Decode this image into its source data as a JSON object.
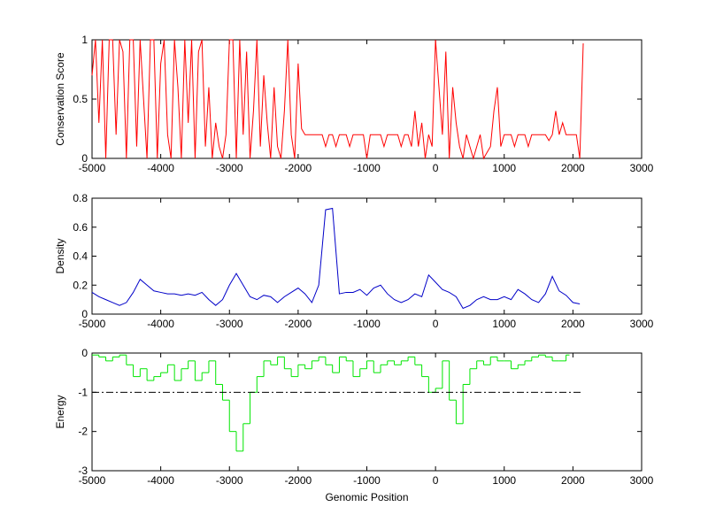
{
  "chart_data": [
    {
      "type": "line",
      "ylabel": "Conservation Score",
      "xlim": [
        -5000,
        3000
      ],
      "xticks": [
        -5000,
        -4000,
        -3000,
        -2000,
        -1000,
        0,
        1000,
        2000,
        3000
      ],
      "ylim": [
        0,
        1
      ],
      "yticks": [
        0,
        0.5,
        1
      ],
      "series": [
        {
          "color": "#ff0000",
          "x": [
            -5000,
            -4950,
            -4900,
            -4850,
            -4800,
            -4750,
            -4700,
            -4650,
            -4600,
            -4550,
            -4500,
            -4450,
            -4400,
            -4350,
            -4300,
            -4250,
            -4200,
            -4150,
            -4100,
            -4050,
            -4000,
            -3950,
            -3900,
            -3850,
            -3800,
            -3750,
            -3700,
            -3650,
            -3600,
            -3550,
            -3500,
            -3450,
            -3400,
            -3350,
            -3300,
            -3250,
            -3200,
            -3150,
            -3100,
            -3050,
            -3000,
            -2950,
            -2900,
            -2850,
            -2800,
            -2750,
            -2700,
            -2650,
            -2600,
            -2550,
            -2500,
            -2450,
            -2400,
            -2350,
            -2300,
            -2250,
            -2200,
            -2150,
            -2100,
            -2050,
            -2000,
            -1950,
            -1900,
            -1850,
            -1800,
            -1750,
            -1700,
            -1650,
            -1600,
            -1550,
            -1500,
            -1450,
            -1400,
            -1350,
            -1300,
            -1250,
            -1200,
            -1150,
            -1100,
            -1050,
            -1000,
            -950,
            -900,
            -850,
            -800,
            -750,
            -700,
            -650,
            -600,
            -550,
            -500,
            -450,
            -400,
            -350,
            -300,
            -250,
            -200,
            -150,
            -100,
            -50,
            0,
            50,
            100,
            150,
            200,
            250,
            300,
            350,
            400,
            450,
            500,
            550,
            600,
            650,
            700,
            750,
            800,
            850,
            900,
            950,
            1000,
            1050,
            1100,
            1150,
            1200,
            1250,
            1300,
            1350,
            1400,
            1450,
            1500,
            1550,
            1600,
            1650,
            1700,
            1750,
            1800,
            1850,
            1900,
            1950,
            2000,
            2050,
            2100,
            2150
          ],
          "values": [
            0.7,
            1,
            0.3,
            1,
            0,
            1,
            1,
            0.2,
            1,
            0.9,
            0,
            1,
            1,
            0.1,
            1,
            0.5,
            0,
            1,
            1,
            0,
            0.8,
            1,
            0.2,
            0,
            1,
            0.6,
            0,
            1,
            0.3,
            1,
            0,
            0.9,
            1,
            0.1,
            0.6,
            0,
            0.3,
            0.1,
            0,
            0.2,
            1,
            1,
            0,
            1,
            0.2,
            0.9,
            0,
            0.4,
            1,
            0.1,
            0.7,
            0.3,
            0,
            0.6,
            0.1,
            0,
            0.4,
            1,
            0.2,
            0,
            0.8,
            0.25,
            0.2,
            0.2,
            0.2,
            0.2,
            0.2,
            0.2,
            0.1,
            0.2,
            0.2,
            0.1,
            0.2,
            0.2,
            0.2,
            0.1,
            0.2,
            0.2,
            0.2,
            0.2,
            0,
            0.2,
            0.2,
            0.2,
            0.2,
            0.1,
            0.2,
            0.2,
            0.2,
            0.2,
            0.1,
            0.2,
            0.2,
            0.1,
            0.4,
            0.1,
            0.3,
            0,
            0.2,
            0.1,
            1,
            0.6,
            0.2,
            0.9,
            0,
            0.6,
            0.3,
            0.1,
            0,
            0.2,
            0.1,
            0,
            0.1,
            0.2,
            0,
            0.05,
            0.1,
            0.4,
            0.6,
            0.1,
            0.2,
            0.2,
            0.2,
            0.1,
            0.2,
            0.2,
            0.2,
            0.1,
            0.2,
            0.2,
            0.2,
            0.2,
            0.2,
            0.15,
            0.2,
            0.4,
            0.2,
            0.3,
            0.2,
            0.2,
            0.2,
            0.2,
            0,
            0.97
          ]
        }
      ]
    },
    {
      "type": "line",
      "ylabel": "Density",
      "xlim": [
        -5000,
        3000
      ],
      "xticks": [
        -5000,
        -4000,
        -3000,
        -2000,
        -1000,
        0,
        1000,
        2000,
        3000
      ],
      "ylim": [
        0,
        0.8
      ],
      "yticks": [
        0,
        0.2,
        0.4,
        0.6,
        0.8
      ],
      "series": [
        {
          "color": "#0000c8",
          "x": [
            -5000,
            -4900,
            -4800,
            -4700,
            -4600,
            -4500,
            -4400,
            -4300,
            -4200,
            -4100,
            -4000,
            -3900,
            -3800,
            -3700,
            -3600,
            -3500,
            -3400,
            -3300,
            -3200,
            -3100,
            -3000,
            -2900,
            -2800,
            -2700,
            -2600,
            -2500,
            -2400,
            -2300,
            -2200,
            -2100,
            -2000,
            -1900,
            -1800,
            -1700,
            -1600,
            -1500,
            -1400,
            -1300,
            -1200,
            -1100,
            -1000,
            -900,
            -800,
            -700,
            -600,
            -500,
            -400,
            -300,
            -200,
            -100,
            0,
            100,
            200,
            300,
            400,
            500,
            600,
            700,
            800,
            900,
            1000,
            1100,
            1200,
            1300,
            1400,
            1500,
            1600,
            1700,
            1800,
            1900,
            2000,
            2100
          ],
          "values": [
            0.15,
            0.12,
            0.1,
            0.08,
            0.06,
            0.08,
            0.15,
            0.24,
            0.2,
            0.16,
            0.15,
            0.14,
            0.14,
            0.13,
            0.14,
            0.13,
            0.15,
            0.1,
            0.06,
            0.1,
            0.2,
            0.28,
            0.2,
            0.12,
            0.1,
            0.13,
            0.12,
            0.08,
            0.12,
            0.15,
            0.18,
            0.14,
            0.08,
            0.2,
            0.72,
            0.73,
            0.14,
            0.15,
            0.15,
            0.17,
            0.13,
            0.18,
            0.2,
            0.14,
            0.1,
            0.08,
            0.1,
            0.14,
            0.12,
            0.27,
            0.22,
            0.17,
            0.15,
            0.12,
            0.04,
            0.06,
            0.1,
            0.12,
            0.1,
            0.1,
            0.12,
            0.1,
            0.17,
            0.14,
            0.1,
            0.08,
            0.14,
            0.26,
            0.16,
            0.13,
            0.08,
            0.07
          ]
        }
      ]
    },
    {
      "type": "step",
      "ylabel": "Energy",
      "xlabel": "Genomic Position",
      "xlim": [
        -5000,
        3000
      ],
      "xticks": [
        -5000,
        -4000,
        -3000,
        -2000,
        -1000,
        0,
        1000,
        2000,
        3000
      ],
      "ylim": [
        -3,
        0
      ],
      "yticks": [
        -3,
        -2,
        -1,
        0
      ],
      "series": [
        {
          "color": "#00e600",
          "x": [
            -5000,
            -4900,
            -4800,
            -4700,
            -4600,
            -4500,
            -4400,
            -4300,
            -4200,
            -4100,
            -4000,
            -3900,
            -3800,
            -3700,
            -3600,
            -3500,
            -3400,
            -3300,
            -3200,
            -3100,
            -3000,
            -2900,
            -2800,
            -2700,
            -2600,
            -2500,
            -2400,
            -2300,
            -2200,
            -2100,
            -2000,
            -1900,
            -1800,
            -1700,
            -1600,
            -1500,
            -1400,
            -1300,
            -1200,
            -1100,
            -1000,
            -900,
            -800,
            -700,
            -600,
            -500,
            -400,
            -300,
            -200,
            -100,
            0,
            100,
            200,
            300,
            400,
            500,
            600,
            700,
            800,
            900,
            1000,
            1100,
            1200,
            1300,
            1400,
            1500,
            1600,
            1700,
            1800,
            1900
          ],
          "values": [
            -0.05,
            -0.1,
            -0.2,
            -0.1,
            -0.05,
            -0.3,
            -0.6,
            -0.4,
            -0.7,
            -0.6,
            -0.5,
            -0.3,
            -0.7,
            -0.4,
            -0.2,
            -0.7,
            -0.5,
            -0.2,
            -0.8,
            -1.2,
            -2.0,
            -2.5,
            -1.8,
            -1.0,
            -0.6,
            -0.2,
            -0.3,
            -0.1,
            -0.4,
            -0.6,
            -0.3,
            -0.4,
            -0.2,
            -0.1,
            -0.3,
            -0.5,
            -0.1,
            -0.2,
            -0.6,
            -0.4,
            -0.2,
            -0.5,
            -0.3,
            -0.2,
            -0.3,
            -0.2,
            -0.1,
            -0.3,
            -0.6,
            -1.0,
            -0.9,
            -0.2,
            -1.2,
            -1.8,
            -0.8,
            -0.4,
            -0.2,
            -0.3,
            -0.1,
            -0.2,
            -0.2,
            -0.4,
            -0.3,
            -0.2,
            -0.1,
            -0.05,
            -0.1,
            -0.2,
            -0.2,
            -0.05
          ]
        },
        {
          "color": "#000000",
          "dash": "dashdot",
          "x": [
            -5000,
            2150
          ],
          "values": [
            -1,
            -1
          ]
        }
      ]
    }
  ]
}
